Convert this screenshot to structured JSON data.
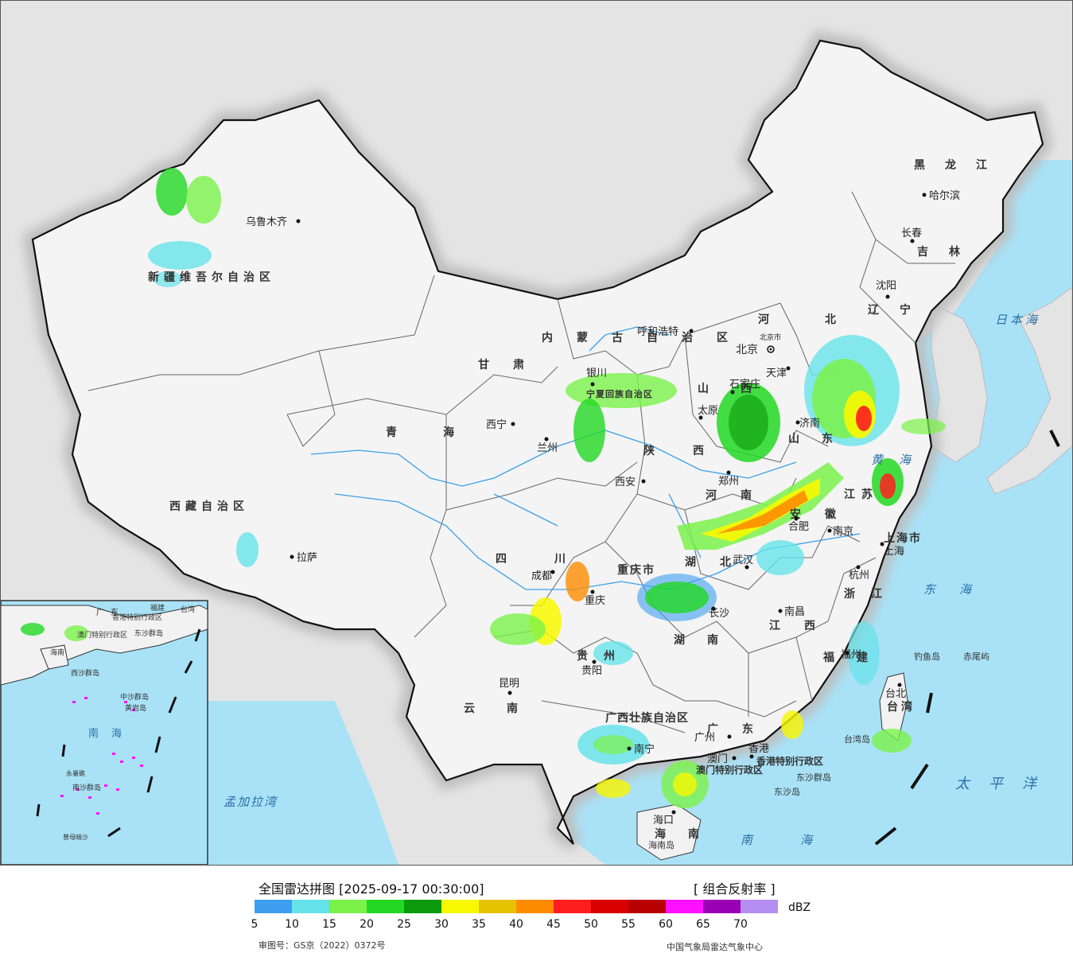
{
  "legend": {
    "title": "全国雷达拼图 [2025-09-17 00:30:00]",
    "product": "[ 组合反射率 ]",
    "unit": "dBZ",
    "approval": "审图号：GS京（2022）0372号",
    "organization": "中国气象局雷达气象中心",
    "ticks": [
      "5",
      "10",
      "15",
      "20",
      "25",
      "30",
      "35",
      "40",
      "45",
      "50",
      "55",
      "60",
      "65",
      "70"
    ],
    "colors": [
      "#3d9ef0",
      "#66e3ea",
      "#7af24a",
      "#22d822",
      "#0b9a0b",
      "#f8f800",
      "#e6c200",
      "#ff8c00",
      "#ff1e1e",
      "#d80000",
      "#b80000",
      "#ff10ff",
      "#9a00b4",
      "#b48ef0"
    ]
  },
  "map": {
    "provinces": [
      {
        "name": "新疆维吾尔自治区"
      },
      {
        "name": "西藏自治区"
      },
      {
        "name": "青海"
      },
      {
        "name": "甘肃"
      },
      {
        "name": "内蒙古自治区"
      },
      {
        "name": "黑龙江"
      },
      {
        "name": "吉林"
      },
      {
        "name": "辽宁"
      },
      {
        "name": "河北"
      },
      {
        "name": "山西"
      },
      {
        "name": "山东"
      },
      {
        "name": "河南"
      },
      {
        "name": "陕西"
      },
      {
        "name": "四川"
      },
      {
        "name": "重庆市"
      },
      {
        "name": "湖北"
      },
      {
        "name": "湖南"
      },
      {
        "name": "江西"
      },
      {
        "name": "安徽"
      },
      {
        "name": "江苏"
      },
      {
        "name": "浙江"
      },
      {
        "name": "福建"
      },
      {
        "name": "贵州"
      },
      {
        "name": "云南"
      },
      {
        "name": "广西壮族自治区"
      },
      {
        "name": "广东"
      },
      {
        "name": "海南"
      },
      {
        "name": "台湾"
      },
      {
        "name": "上海市"
      },
      {
        "name": "宁夏回族自治区"
      }
    ],
    "cities": [
      {
        "name": "乌鲁木齐"
      },
      {
        "name": "拉萨"
      },
      {
        "name": "西宁"
      },
      {
        "name": "兰州"
      },
      {
        "name": "银川"
      },
      {
        "name": "呼和浩特"
      },
      {
        "name": "哈尔滨"
      },
      {
        "name": "长春"
      },
      {
        "name": "沈阳"
      },
      {
        "name": "北京"
      },
      {
        "name": "北京市"
      },
      {
        "name": "天津"
      },
      {
        "name": "石家庄"
      },
      {
        "name": "太原"
      },
      {
        "name": "济南"
      },
      {
        "name": "郑州"
      },
      {
        "name": "西安"
      },
      {
        "name": "成都"
      },
      {
        "name": "重庆"
      },
      {
        "name": "武汉"
      },
      {
        "name": "长沙"
      },
      {
        "name": "南昌"
      },
      {
        "name": "合肥"
      },
      {
        "name": "南京"
      },
      {
        "name": "上海"
      },
      {
        "name": "杭州"
      },
      {
        "name": "福州"
      },
      {
        "name": "台北"
      },
      {
        "name": "贵阳"
      },
      {
        "name": "昆明"
      },
      {
        "name": "南宁"
      },
      {
        "name": "广州"
      },
      {
        "name": "香港"
      },
      {
        "name": "澳门"
      },
      {
        "name": "海口"
      }
    ],
    "seas": [
      {
        "name": "日本海"
      },
      {
        "name": "黄海"
      },
      {
        "name": "东海"
      },
      {
        "name": "太平洋"
      },
      {
        "name": "南海"
      },
      {
        "name": "孟加拉湾"
      }
    ],
    "islands": [
      {
        "name": "钓鱼岛"
      },
      {
        "name": "赤尾屿"
      },
      {
        "name": "台湾岛"
      },
      {
        "name": "东沙群岛"
      },
      {
        "name": "海南岛"
      },
      {
        "name": "香港特别行政区"
      },
      {
        "name": "澳门特别行政区"
      },
      {
        "name": "东沙岛"
      }
    ],
    "inset_labels": [
      {
        "name": "南海"
      },
      {
        "name": "广东"
      },
      {
        "name": "福建"
      },
      {
        "name": "台湾"
      },
      {
        "name": "香港特别行政区"
      },
      {
        "name": "澳门特别行政区"
      },
      {
        "name": "海南"
      },
      {
        "name": "东沙群岛"
      },
      {
        "name": "西沙群岛"
      },
      {
        "name": "中沙群岛"
      },
      {
        "name": "黄岩岛"
      },
      {
        "name": "南沙群岛"
      },
      {
        "name": "永暑礁"
      },
      {
        "name": "曾母暗沙"
      }
    ]
  }
}
